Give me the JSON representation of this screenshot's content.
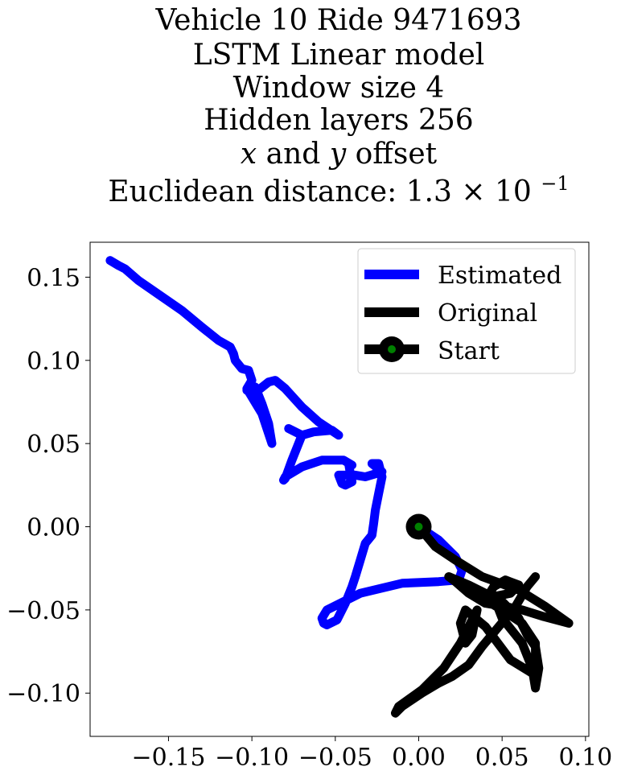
{
  "chart_data": {
    "type": "line",
    "title_lines": [
      "Vehicle 10 Ride 9471693",
      "LSTM Linear model",
      "Window size 4",
      "Hidden layers 256",
      "x and y offset",
      "Euclidean distance: 1.3×10⁻¹"
    ],
    "title_parts": {
      "var_x": "x",
      "conj": "and",
      "var_y": "y",
      "offset_word": "offset",
      "dist_prefix": "Euclidean distance: 1.3",
      "times": "×",
      "base": "10",
      "exponent": "−1"
    },
    "xlim": [
      -0.197,
      0.102
    ],
    "ylim": [
      -0.126,
      0.171
    ],
    "xticks": [
      -0.15,
      -0.1,
      -0.05,
      0.0,
      0.05,
      0.1
    ],
    "xtick_labels": [
      "−0.15",
      "−0.10",
      "−0.05",
      "0.00",
      "0.05",
      "0.10"
    ],
    "yticks": [
      -0.1,
      -0.05,
      0.0,
      0.05,
      0.1,
      0.15
    ],
    "ytick_labels": [
      "−0.10",
      "−0.05",
      "0.00",
      "0.05",
      "0.10",
      "0.15"
    ],
    "grid": false,
    "legend_position": "top-right",
    "series": [
      {
        "name": "Estimated",
        "color": "#0000ff",
        "x": [
          0.0,
          0.012,
          0.022,
          0.026,
          0.024,
          0.012,
          -0.01,
          -0.035,
          -0.055,
          -0.058,
          -0.057,
          -0.055,
          -0.049,
          -0.044,
          -0.04,
          -0.038,
          -0.035,
          -0.032,
          -0.028,
          -0.027,
          -0.026,
          -0.024,
          -0.022,
          -0.024,
          -0.028,
          -0.022,
          -0.032,
          -0.038,
          -0.048,
          -0.046,
          -0.044,
          -0.04,
          -0.041,
          -0.042,
          -0.04,
          -0.045,
          -0.058,
          -0.07,
          -0.08,
          -0.081,
          -0.08,
          -0.076,
          -0.07,
          -0.076,
          -0.078,
          -0.07,
          -0.063,
          -0.052,
          -0.048,
          -0.06,
          -0.07,
          -0.08,
          -0.086,
          -0.09,
          -0.095,
          -0.1,
          -0.103,
          -0.098,
          -0.094,
          -0.09,
          -0.088,
          -0.094,
          -0.1,
          -0.103,
          -0.1,
          -0.102,
          -0.106,
          -0.11,
          -0.111,
          -0.113,
          -0.12,
          -0.13,
          -0.142,
          -0.155,
          -0.168,
          -0.176,
          -0.18,
          -0.185
        ],
        "y": [
          0.0,
          -0.008,
          -0.018,
          -0.026,
          -0.032,
          -0.033,
          -0.034,
          -0.04,
          -0.05,
          -0.055,
          -0.058,
          -0.059,
          -0.056,
          -0.046,
          -0.036,
          -0.03,
          -0.02,
          -0.01,
          -0.005,
          0.002,
          0.01,
          0.02,
          0.03,
          0.038,
          0.038,
          0.033,
          0.03,
          0.031,
          0.031,
          0.026,
          0.025,
          0.027,
          0.032,
          0.038,
          0.037,
          0.04,
          0.04,
          0.036,
          0.03,
          0.028,
          0.029,
          0.04,
          0.055,
          0.058,
          0.059,
          0.055,
          0.057,
          0.058,
          0.055,
          0.063,
          0.072,
          0.083,
          0.088,
          0.087,
          0.083,
          0.08,
          0.082,
          0.084,
          0.074,
          0.062,
          0.05,
          0.068,
          0.078,
          0.083,
          0.088,
          0.094,
          0.095,
          0.1,
          0.104,
          0.108,
          0.112,
          0.12,
          0.13,
          0.139,
          0.148,
          0.155,
          0.157,
          0.16
        ]
      },
      {
        "name": "Original",
        "color": "#000000",
        "x": [
          0.0,
          0.01,
          0.022,
          0.038,
          0.06,
          0.076,
          0.09,
          0.075,
          0.062,
          0.052,
          0.04,
          0.03,
          0.022,
          0.018,
          0.03,
          0.05,
          0.06,
          0.065,
          0.07,
          0.072,
          0.07,
          0.068,
          0.062,
          0.05,
          0.045,
          0.055,
          0.06,
          0.052,
          0.045,
          0.04,
          0.05,
          0.062,
          0.07,
          0.07,
          0.068,
          0.055,
          0.04,
          0.028,
          0.025,
          0.028,
          0.032,
          0.035,
          0.025,
          0.015,
          0.008,
          0.002,
          -0.005,
          -0.012,
          -0.014,
          -0.01,
          0.002,
          0.012,
          0.02,
          0.03,
          0.038,
          0.048,
          0.058,
          0.065,
          0.07
        ],
        "y": [
          0.0,
          -0.012,
          -0.02,
          -0.03,
          -0.038,
          -0.048,
          -0.058,
          -0.054,
          -0.05,
          -0.048,
          -0.046,
          -0.04,
          -0.033,
          -0.03,
          -0.035,
          -0.045,
          -0.055,
          -0.065,
          -0.072,
          -0.085,
          -0.097,
          -0.085,
          -0.07,
          -0.055,
          -0.042,
          -0.04,
          -0.035,
          -0.032,
          -0.036,
          -0.044,
          -0.05,
          -0.058,
          -0.07,
          -0.08,
          -0.088,
          -0.08,
          -0.06,
          -0.05,
          -0.058,
          -0.07,
          -0.065,
          -0.05,
          -0.07,
          -0.085,
          -0.092,
          -0.098,
          -0.103,
          -0.108,
          -0.112,
          -0.108,
          -0.1,
          -0.094,
          -0.09,
          -0.083,
          -0.072,
          -0.06,
          -0.048,
          -0.036,
          -0.03
        ]
      }
    ],
    "start_marker": {
      "name": "Start",
      "x": 0.0,
      "y": 0.0,
      "edge_color": "#000000",
      "face_color": "#008000"
    }
  }
}
